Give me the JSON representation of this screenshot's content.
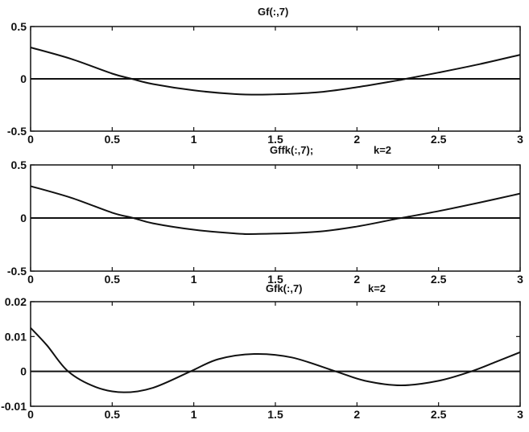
{
  "chart_data": [
    {
      "type": "line",
      "title": "Gf(:,7)",
      "xlim": [
        0,
        3
      ],
      "ylim": [
        -0.5,
        0.5
      ],
      "xticks": [
        "0",
        "0.5",
        "1",
        "1.5",
        "2",
        "2.5",
        "3"
      ],
      "yticks": [
        "-0.5",
        "0",
        "0.5"
      ],
      "grid": false,
      "zero_line": true,
      "x": [
        0,
        0.25,
        0.5,
        0.62,
        0.75,
        1.0,
        1.25,
        1.45,
        1.75,
        2.0,
        2.25,
        2.3,
        2.5,
        2.75,
        3.0
      ],
      "y": [
        0.3,
        0.19,
        0.05,
        0.0,
        -0.05,
        -0.11,
        -0.145,
        -0.15,
        -0.13,
        -0.08,
        -0.015,
        0.0,
        0.06,
        0.14,
        0.23
      ]
    },
    {
      "type": "line",
      "title": "Gffk(:,7);",
      "title2": "k=2",
      "xlim": [
        0,
        3
      ],
      "ylim": [
        -0.5,
        0.5
      ],
      "xticks": [
        "0",
        "0.5",
        "1",
        "1.5",
        "2",
        "2.5",
        "3"
      ],
      "yticks": [
        "-0.5",
        "0",
        "0.5"
      ],
      "grid": false,
      "zero_line": true,
      "x": [
        0,
        0.25,
        0.5,
        0.63,
        0.75,
        1.0,
        1.25,
        1.4,
        1.75,
        2.0,
        2.25,
        2.27,
        2.5,
        2.75,
        3.0
      ],
      "y": [
        0.3,
        0.19,
        0.05,
        0.0,
        -0.05,
        -0.11,
        -0.145,
        -0.15,
        -0.13,
        -0.08,
        -0.005,
        0.0,
        0.065,
        0.145,
        0.23
      ]
    },
    {
      "type": "line",
      "title": "Gfk(:,7)",
      "title2": "k=2",
      "xlim": [
        0,
        3
      ],
      "ylim": [
        -0.01,
        0.02
      ],
      "xticks": [
        "0",
        "0.5",
        "1",
        "1.5",
        "2",
        "2.5",
        "3"
      ],
      "yticks": [
        "-0.01",
        "0",
        "0.01",
        "0.02"
      ],
      "grid": false,
      "zero_line": true,
      "x": [
        0,
        0.1,
        0.23,
        0.4,
        0.57,
        0.75,
        0.98,
        1.15,
        1.37,
        1.6,
        1.87,
        2.05,
        2.27,
        2.5,
        2.7,
        2.85,
        3.0
      ],
      "y": [
        0.0125,
        0.0075,
        0.0,
        -0.0045,
        -0.006,
        -0.0047,
        0.0,
        0.0035,
        0.005,
        0.004,
        0.0,
        -0.0027,
        -0.004,
        -0.0027,
        0.0,
        0.0027,
        0.0055
      ]
    }
  ]
}
